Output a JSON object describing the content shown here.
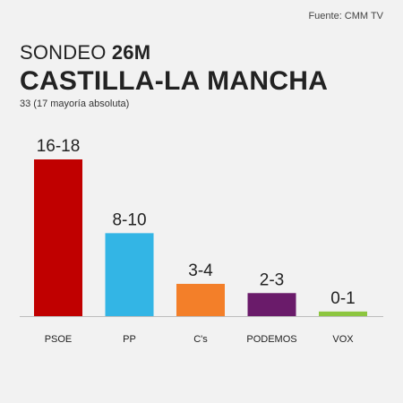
{
  "source": "Fuente: CMM TV",
  "kicker_prefix": "SONDEO",
  "kicker_bold": "26M",
  "title": "CASTILLA-LA MANCHA",
  "subtitle": "33 (17 mayoría absoluta)",
  "chart_data": {
    "type": "bar",
    "categories": [
      "PSOE",
      "PP",
      "C's",
      "PODEMOS",
      "VOX"
    ],
    "values": [
      17,
      9,
      3.5,
      2.5,
      0.5
    ],
    "data_labels": [
      "16-18",
      "8-10",
      "3-4",
      "2-3",
      "0-1"
    ],
    "colors": [
      "#c00000",
      "#33b5e5",
      "#f37f29",
      "#6a1b6a",
      "#8dc63f"
    ],
    "ylim": [
      0,
      17
    ],
    "grid": false
  }
}
